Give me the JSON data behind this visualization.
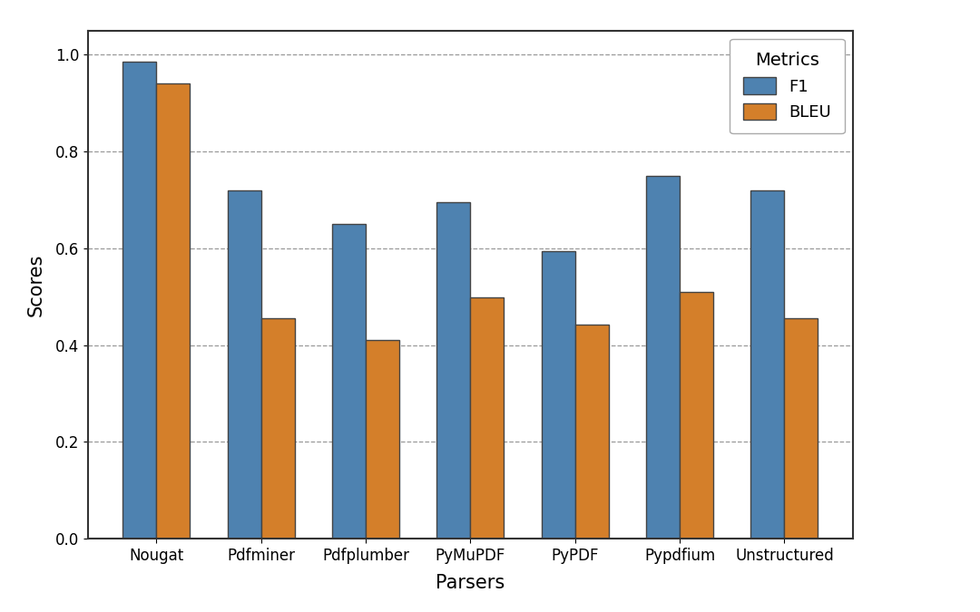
{
  "categories": [
    "Nougat",
    "Pdfminer",
    "Pdfplumber",
    "PyMuPDF",
    "PyPDF",
    "Pypdfium",
    "Unstructured"
  ],
  "f1_values": [
    0.985,
    0.72,
    0.65,
    0.695,
    0.595,
    0.75,
    0.72
  ],
  "bleu_values": [
    0.94,
    0.455,
    0.41,
    0.498,
    0.443,
    0.51,
    0.455
  ],
  "f1_color": "#4e82b0",
  "bleu_color": "#d47f2a",
  "xlabel": "Parsers",
  "ylabel": "Scores",
  "ylim": [
    0.0,
    1.05
  ],
  "yticks": [
    0.0,
    0.2,
    0.4,
    0.6,
    0.8,
    1.0
  ],
  "legend_title": "Metrics",
  "legend_labels": [
    "F1",
    "BLEU"
  ],
  "bar_width": 0.32,
  "background_color": "#ffffff",
  "axes_bg_color": "#ffffff",
  "grid_color": "#555555",
  "edge_color": "#444444",
  "xlabel_fontsize": 15,
  "ylabel_fontsize": 15,
  "tick_fontsize": 12,
  "legend_fontsize": 13,
  "legend_title_fontsize": 14
}
